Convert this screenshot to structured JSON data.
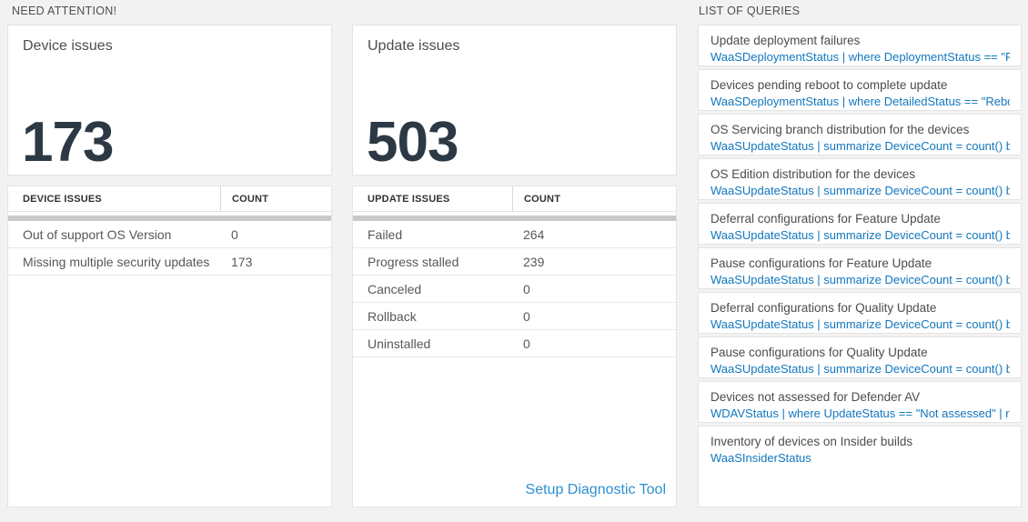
{
  "colors": {
    "page_background": "#f2f2f2",
    "tile_background": "#ffffff",
    "big_number_text": "#2c3945",
    "query_link_blue": "#1277bd",
    "footer_link_blue": "#2e8fd0",
    "scroll_strip_gray": "#c9c9c9"
  },
  "need_attention": {
    "title": "NEED ATTENTION!",
    "cards": [
      {
        "title": "Device issues",
        "big_number": "173",
        "table": {
          "header_label": "DEVICE ISSUES",
          "header_count": "COUNT",
          "rows": [
            {
              "label": "Out of support OS Version",
              "count": "0"
            },
            {
              "label": "Missing multiple security updates",
              "count": "173"
            }
          ]
        }
      },
      {
        "title": "Update issues",
        "big_number": "503",
        "table": {
          "header_label": "UPDATE ISSUES",
          "header_count": "COUNT",
          "rows": [
            {
              "label": "Failed",
              "count": "264"
            },
            {
              "label": "Progress stalled",
              "count": "239"
            },
            {
              "label": "Canceled",
              "count": "0"
            },
            {
              "label": "Rollback",
              "count": "0"
            },
            {
              "label": "Uninstalled",
              "count": "0"
            }
          ]
        },
        "footer_link": "Setup Diagnostic Tool"
      }
    ]
  },
  "list_of_queries": {
    "title": "LIST OF QUERIES",
    "queries": [
      {
        "title": "Update deployment failures",
        "query": "WaaSDeploymentStatus | where DeploymentStatus == \"Failed\" |..."
      },
      {
        "title": "Devices pending reboot to complete update",
        "query": "WaaSDeploymentStatus | where DetailedStatus == \"Reboot pend..."
      },
      {
        "title": "OS Servicing branch distribution for the devices",
        "query": "WaaSUpdateStatus | summarize DeviceCount = count() by OSSer..."
      },
      {
        "title": "OS Edition distribution for the devices",
        "query": "WaaSUpdateStatus | summarize DeviceCount = count() by OSEdit..."
      },
      {
        "title": "Deferral configurations for Feature Update",
        "query": "WaaSUpdateStatus | summarize DeviceCount = count() by Featur..."
      },
      {
        "title": "Pause configurations for Feature Update",
        "query": "WaaSUpdateStatus | summarize DeviceCount = count() by Featur..."
      },
      {
        "title": "Deferral configurations for Quality Update",
        "query": "WaaSUpdateStatus | summarize DeviceCount = count() by Qualit..."
      },
      {
        "title": "Pause configurations for Quality Update",
        "query": "WaaSUpdateStatus | summarize DeviceCount = count() by Qualit..."
      },
      {
        "title": "Devices not assessed for Defender AV",
        "query": "WDAVStatus | where UpdateStatus == \"Not assessed\" | render ta..."
      },
      {
        "title": "Inventory of devices on Insider builds",
        "query": "WaaSInsiderStatus"
      }
    ]
  }
}
